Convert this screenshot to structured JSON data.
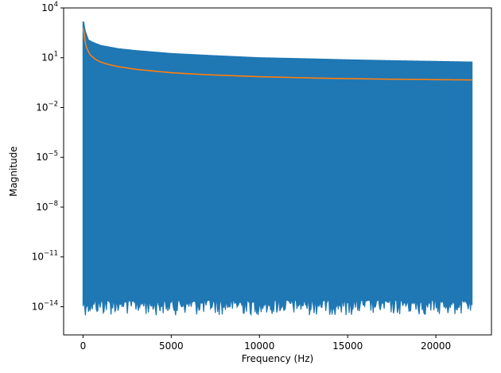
{
  "chart_data": {
    "type": "line",
    "title": "",
    "xlabel": "Frequency (Hz)",
    "ylabel": "Magnitude",
    "x_scale": "linear",
    "y_scale": "log",
    "xlim": [
      -1100,
      23150
    ],
    "ylim": [
      2e-16,
      10000
    ],
    "x_ticks": [
      {
        "value": 0,
        "label": "0"
      },
      {
        "value": 5000,
        "label": "5000"
      },
      {
        "value": 10000,
        "label": "10000"
      },
      {
        "value": 15000,
        "label": "15000"
      },
      {
        "value": 20000,
        "label": "20000"
      }
    ],
    "y_ticks": [
      {
        "value": 1e-14,
        "base": "10",
        "exp": "−14"
      },
      {
        "value": 1e-11,
        "base": "10",
        "exp": "−11"
      },
      {
        "value": 1e-08,
        "base": "10",
        "exp": "−8"
      },
      {
        "value": 1e-05,
        "base": "10",
        "exp": "−5"
      },
      {
        "value": 0.01,
        "base": "10",
        "exp": "−2"
      },
      {
        "value": 10,
        "base": "10",
        "exp": "1"
      },
      {
        "value": 10000,
        "base": "10",
        "exp": "4"
      }
    ],
    "grid": false,
    "legend": false,
    "series": [
      {
        "color": "#1f77b4",
        "style": "dense-band",
        "upper_envelope": {
          "x": [
            0,
            50,
            100,
            300,
            500,
            1000,
            2000,
            3000,
            5000,
            7000,
            10000,
            13000,
            15000,
            18000,
            20000,
            22050
          ],
          "y": [
            1400,
            1400,
            500,
            120,
            90,
            55,
            35,
            27,
            18,
            14,
            10,
            8.5,
            7.5,
            6.5,
            6,
            5.5
          ]
        },
        "lower_noise_floor": {
          "range": [
            3e-15,
            2.5e-14
          ]
        }
      },
      {
        "color": "#ff7f0e",
        "style": "line",
        "x": [
          0,
          50,
          100,
          200,
          400,
          700,
          1000,
          1500,
          2000,
          3000,
          5000,
          7000,
          10000,
          13000,
          15000,
          18000,
          20000,
          22050
        ],
        "y": [
          600,
          350,
          120,
          40,
          15,
          8,
          5.5,
          3.8,
          2.9,
          2.0,
          1.25,
          0.95,
          0.72,
          0.6,
          0.55,
          0.5,
          0.48,
          0.46
        ]
      }
    ]
  }
}
